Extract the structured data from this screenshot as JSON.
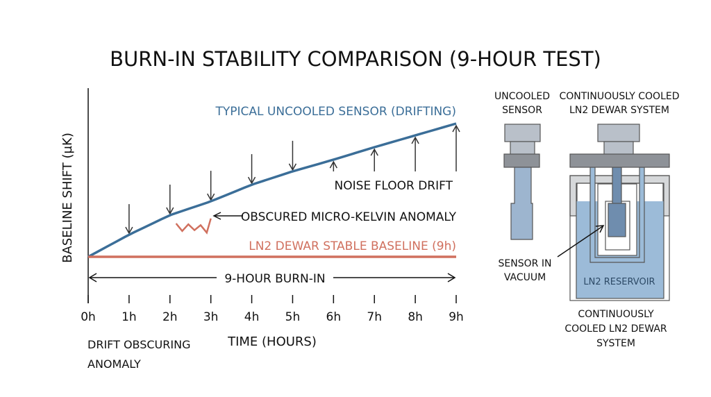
{
  "title": "BURN-IN STABILITY COMPARISON (9-HOUR TEST)",
  "chart_data": {
    "type": "line",
    "title": "BURN-IN STABILITY COMPARISON (9-HOUR TEST)",
    "xlabel": "TIME (HOURS)",
    "ylabel": "BASELINE SHIFT (µK)",
    "x": [
      0,
      1,
      2,
      3,
      4,
      5,
      6,
      7,
      8,
      9
    ],
    "xticklabels": [
      "0h",
      "1h",
      "2h",
      "3h",
      "4h",
      "5h",
      "6h",
      "7h",
      "8h",
      "9h"
    ],
    "xlim": [
      0,
      9
    ],
    "ylim": [
      0,
      10
    ],
    "grid": false,
    "series": [
      {
        "name": "TYPICAL UNCOOLED SENSOR (DRIFTING)",
        "color": "#3b6e98",
        "values": [
          0,
          1.33,
          2.5,
          3.33,
          4.33,
          5.13,
          5.83,
          6.58,
          7.29,
          8.0
        ]
      },
      {
        "name": "LN2 DEWAR STABLE BASELINE (9h)",
        "color": "#d0705e",
        "values": [
          0,
          0,
          0,
          0,
          0,
          0,
          0,
          0,
          0,
          0
        ]
      }
    ],
    "anomaly": {
      "label": "OBSCURED MICRO-KELVIN ANOMALY",
      "x": [
        2.15,
        2.3,
        2.45,
        2.6,
        2.75,
        2.9,
        3.0
      ],
      "y": [
        2.0,
        1.55,
        1.95,
        1.6,
        1.9,
        1.45,
        2.3
      ]
    },
    "annotations": {
      "noise_floor": "NOISE FLOOR DRIFT",
      "burn_in": "9-HOUR BURN-IN",
      "drift_note": [
        "DRIFT OBSCURING",
        "ANOMALY"
      ]
    }
  },
  "diagram": {
    "uncooled_label": [
      "UNCOOLED",
      "SENSOR"
    ],
    "cooled_label": [
      "CONTINUOUSLY COOLED",
      "LN2 DEWAR SYSTEM"
    ],
    "sensor_label": [
      "SENSOR IN",
      "VACUUM"
    ],
    "reservoir_label": "LN2 RESERVOIR",
    "bottom_label": [
      "CONTINUOUSLY",
      "COOLED LN2 DEWAR",
      "SYSTEM"
    ]
  }
}
